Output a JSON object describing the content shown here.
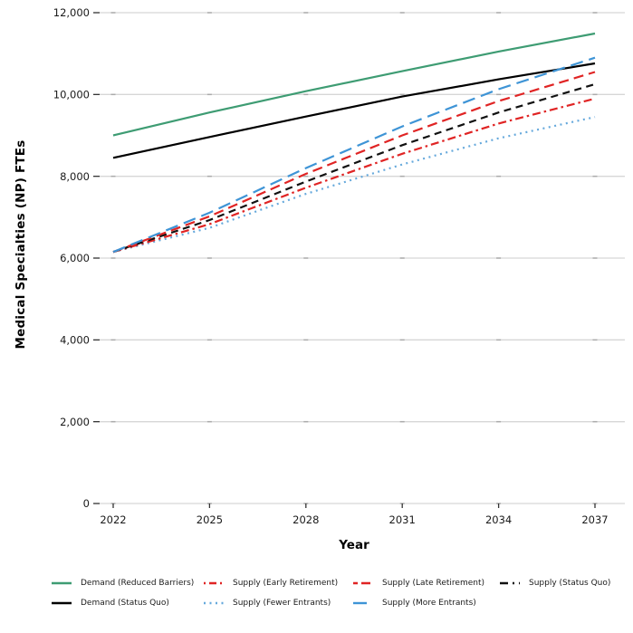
{
  "chart_data": {
    "type": "line",
    "title": "",
    "xlabel": "Year",
    "ylabel": "Medical Specialties (NP) FTEs",
    "x": [
      2022,
      2025,
      2028,
      2031,
      2034,
      2037
    ],
    "xtick_labels": [
      "2022",
      "2025",
      "2028",
      "2031",
      "2034",
      "2037"
    ],
    "xlim": [
      2022,
      2037
    ],
    "ylim": [
      0,
      12000
    ],
    "yticks": [
      0,
      2000,
      4000,
      6000,
      8000,
      10000,
      12000
    ],
    "ytick_labels": [
      "0",
      "2,000",
      "4,000",
      "6,000",
      "8,000",
      "10,000",
      "12,000"
    ],
    "grid": "horizontal",
    "legend_position": "bottom",
    "series": [
      {
        "id": "demand_reduced_barriers",
        "label": "Demand (Reduced Barriers)",
        "color": "#3E9C73",
        "dash": "",
        "legend_dash": "",
        "values": [
          9000,
          9560,
          10080,
          10570,
          11050,
          11490
        ]
      },
      {
        "id": "demand_status_quo",
        "label": "Demand (Status Quo)",
        "color": "#000000",
        "dash": "",
        "legend_dash": "",
        "values": [
          8450,
          8960,
          9460,
          9950,
          10370,
          10760
        ]
      },
      {
        "id": "supply_early_retirement",
        "label": "Supply (Early Retirement)",
        "color": "#E02424",
        "dash": "9 4 2.5 4",
        "legend_dash": "2 4 8 4",
        "values": [
          6150,
          6830,
          7720,
          8550,
          9290,
          9900
        ]
      },
      {
        "id": "supply_fewer_entrants",
        "label": "Supply (Fewer Entrants)",
        "color": "#66A9DC",
        "dash": "2 4.5",
        "legend_dash": "2 4.5",
        "values": [
          6150,
          6740,
          7570,
          8290,
          8930,
          9450
        ]
      },
      {
        "id": "supply_late_retirement",
        "label": "Supply (Late Retirement)",
        "color": "#E02424",
        "dash": "11 6",
        "legend_dash": "5 4 10 4",
        "values": [
          6150,
          7020,
          8060,
          9000,
          9840,
          10550
        ]
      },
      {
        "id": "supply_more_entrants",
        "label": "Supply (More Entrants)",
        "color": "#3E94D6",
        "dash": "14 7",
        "legend_dash": "15 20",
        "values": [
          6150,
          7110,
          8200,
          9220,
          10130,
          10900
        ]
      },
      {
        "id": "supply_status_quo",
        "label": "Supply (Status Quo)",
        "color": "#111111",
        "dash": "8 5.5",
        "legend_dash": "9 5 2 5",
        "values": [
          6150,
          6930,
          7870,
          8760,
          9560,
          10250
        ]
      }
    ],
    "legend_order": [
      "demand_reduced_barriers",
      "supply_early_retirement",
      "supply_late_retirement",
      "supply_status_quo",
      "demand_status_quo",
      "supply_fewer_entrants",
      "supply_more_entrants"
    ],
    "draw_order": [
      "demand_reduced_barriers",
      "demand_status_quo",
      "supply_fewer_entrants",
      "supply_early_retirement",
      "supply_status_quo",
      "supply_late_retirement",
      "supply_more_entrants"
    ]
  },
  "style_colors": {
    "gridline": "#d6d6d6",
    "grid_intersection_mark": "#ababab",
    "tick": "#333333",
    "tick_label": "#1a1a1a",
    "axis_line": "#cfcfcf"
  }
}
